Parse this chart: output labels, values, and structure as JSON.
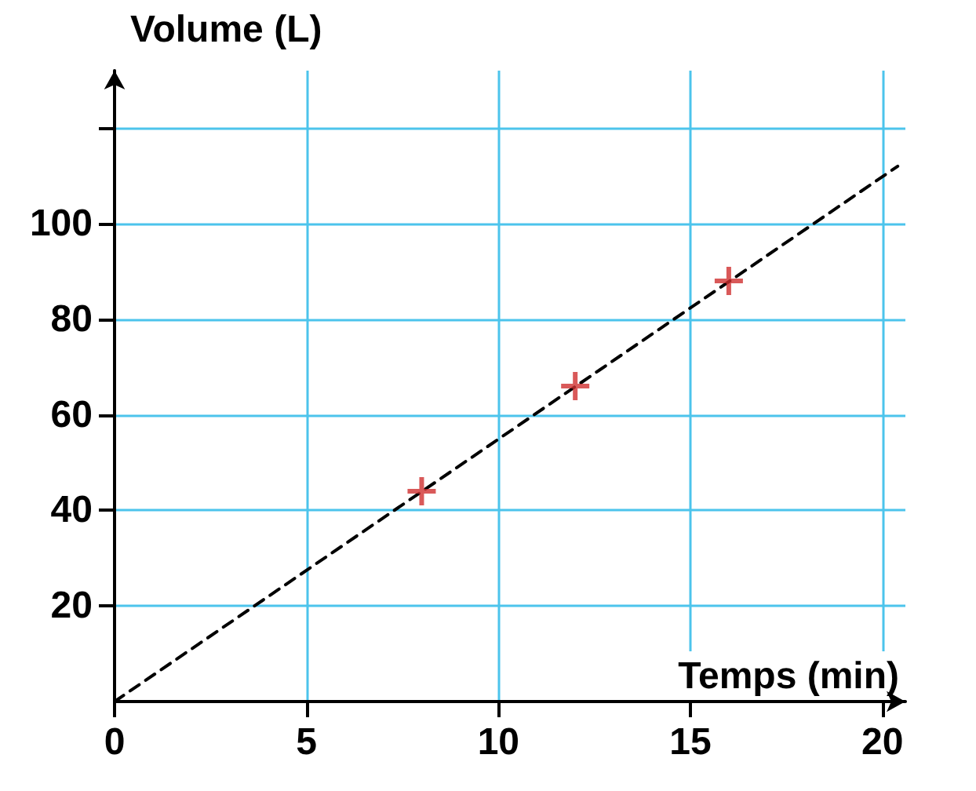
{
  "chart_data": {
    "type": "scatter",
    "xlabel": "Temps (min)",
    "ylabel": "Volume (L)",
    "xlim": [
      0,
      20.6
    ],
    "ylim": [
      0,
      132
    ],
    "xticks": [
      0,
      5,
      10,
      15,
      20
    ],
    "yticks": [
      20,
      40,
      60,
      80,
      100,
      {
        "value": 120,
        "label": null
      }
    ],
    "grid": true,
    "marker": "cross",
    "series": [
      {
        "type": "line",
        "color": "#000000",
        "line_style": "dashed",
        "marker": "none",
        "x": [
          0,
          20.4
        ],
        "values": [
          0,
          112
        ]
      },
      {
        "color": "#d03030",
        "x": [
          8,
          12,
          16
        ],
        "values": [
          44,
          66,
          88
        ]
      }
    ]
  }
}
